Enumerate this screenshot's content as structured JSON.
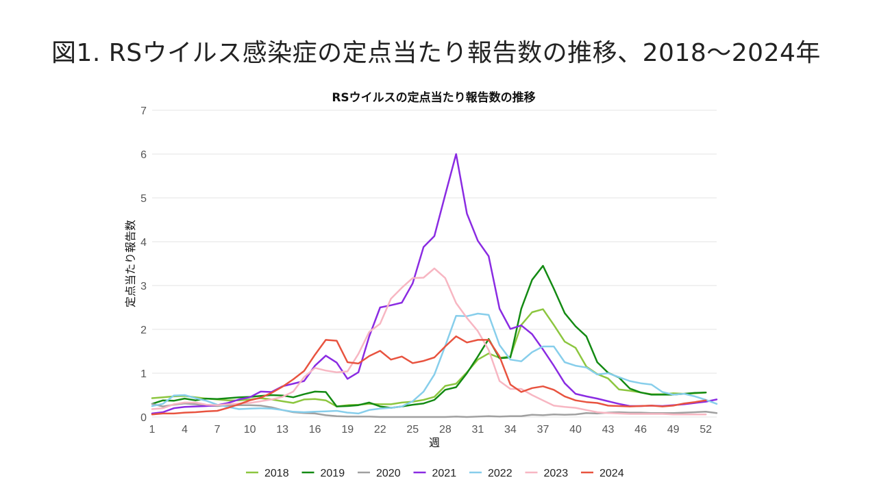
{
  "slide_title": "図1. RSウイルス感染症の定点当たり報告数の推移、2018～2024年",
  "chart_data": {
    "type": "line",
    "title": "RSウイルスの定点当たり報告数の推移",
    "xlabel": "週",
    "ylabel": "定点当たり報告数",
    "xlim": [
      1,
      53
    ],
    "ylim": [
      0,
      7
    ],
    "x_ticks": [
      1,
      4,
      7,
      10,
      13,
      16,
      19,
      22,
      25,
      28,
      31,
      34,
      37,
      40,
      43,
      46,
      49,
      52
    ],
    "y_ticks": [
      0,
      1,
      2,
      3,
      4,
      5,
      6,
      7
    ],
    "grid": "horizontal",
    "legend_position": "bottom",
    "x": [
      1,
      2,
      3,
      4,
      5,
      6,
      7,
      8,
      9,
      10,
      11,
      12,
      13,
      14,
      15,
      16,
      17,
      18,
      19,
      20,
      21,
      22,
      23,
      24,
      25,
      26,
      27,
      28,
      29,
      30,
      31,
      32,
      33,
      34,
      35,
      36,
      37,
      38,
      39,
      40,
      41,
      42,
      43,
      44,
      45,
      46,
      47,
      48,
      49,
      50,
      51,
      52,
      53
    ],
    "series": [
      {
        "name": "2018",
        "color": "#8cc63f",
        "values": [
          0.43,
          0.45,
          0.47,
          0.48,
          0.45,
          0.42,
          0.4,
          0.38,
          0.38,
          0.4,
          0.43,
          0.4,
          0.36,
          0.32,
          0.4,
          0.41,
          0.38,
          0.24,
          0.27,
          0.28,
          0.3,
          0.29,
          0.29,
          0.33,
          0.35,
          0.39,
          0.46,
          0.71,
          0.76,
          1.02,
          1.31,
          1.45,
          1.35,
          1.38,
          2.1,
          2.39,
          2.46,
          2.1,
          1.72,
          1.58,
          1.15,
          0.98,
          0.88,
          0.63,
          0.6,
          0.56,
          0.52,
          0.52,
          0.54,
          0.53,
          0.54,
          0.56,
          null
        ]
      },
      {
        "name": "2019",
        "color": "#138a13",
        "values": [
          0.3,
          0.38,
          0.37,
          0.42,
          0.38,
          0.42,
          0.41,
          0.43,
          0.45,
          0.46,
          0.48,
          0.5,
          0.49,
          0.45,
          0.52,
          0.58,
          0.57,
          0.24,
          0.25,
          0.27,
          0.33,
          0.24,
          0.21,
          0.24,
          0.28,
          0.31,
          0.39,
          0.62,
          0.68,
          1.0,
          1.38,
          1.78,
          1.34,
          1.36,
          2.47,
          3.13,
          3.45,
          2.93,
          2.37,
          2.07,
          1.84,
          1.25,
          1.01,
          0.9,
          0.65,
          0.56,
          0.51,
          0.51,
          0.51,
          0.53,
          0.55,
          0.56,
          null
        ]
      },
      {
        "name": "2020",
        "color": "#a0a0a0",
        "values": [
          0.3,
          0.24,
          0.28,
          0.31,
          0.29,
          0.26,
          0.25,
          0.26,
          0.27,
          0.27,
          0.26,
          0.22,
          0.16,
          0.11,
          0.09,
          0.08,
          0.04,
          0.02,
          0.01,
          0.01,
          0.01,
          0.0,
          0.0,
          0.0,
          0.0,
          0.0,
          0.0,
          0.0,
          0.01,
          0.0,
          0.01,
          0.02,
          0.01,
          0.02,
          0.02,
          0.05,
          0.04,
          0.06,
          0.05,
          0.06,
          0.09,
          0.08,
          0.1,
          0.11,
          0.1,
          0.1,
          0.09,
          0.09,
          0.09,
          0.1,
          0.11,
          0.12,
          0.09
        ]
      },
      {
        "name": "2021",
        "color": "#8a2be2",
        "values": [
          0.08,
          0.11,
          0.2,
          0.23,
          0.24,
          0.25,
          0.27,
          0.32,
          0.4,
          0.45,
          0.58,
          0.57,
          0.7,
          0.76,
          0.82,
          1.17,
          1.4,
          1.24,
          0.87,
          1.02,
          1.84,
          2.5,
          2.55,
          2.61,
          3.05,
          3.88,
          4.13,
          5.07,
          6.0,
          4.64,
          4.02,
          3.67,
          2.47,
          2.01,
          2.09,
          1.89,
          1.54,
          1.17,
          0.77,
          0.53,
          0.47,
          0.42,
          0.36,
          0.3,
          0.25,
          0.25,
          0.26,
          0.25,
          0.27,
          0.29,
          0.32,
          0.35,
          0.4
        ]
      },
      {
        "name": "2022",
        "color": "#87ceeb",
        "values": [
          0.25,
          0.3,
          0.49,
          0.5,
          0.43,
          0.37,
          0.28,
          0.23,
          0.18,
          0.19,
          0.2,
          0.19,
          0.16,
          0.12,
          0.11,
          0.12,
          0.13,
          0.14,
          0.1,
          0.08,
          0.16,
          0.19,
          0.21,
          0.24,
          0.36,
          0.58,
          0.97,
          1.62,
          2.31,
          2.3,
          2.36,
          2.33,
          1.64,
          1.31,
          1.27,
          1.48,
          1.61,
          1.61,
          1.25,
          1.17,
          1.13,
          0.97,
          1.0,
          0.91,
          0.82,
          0.77,
          0.74,
          0.57,
          0.51,
          0.53,
          0.47,
          0.39,
          0.3
        ]
      },
      {
        "name": "2023",
        "color": "#f7b6c2",
        "values": [
          0.18,
          0.2,
          0.29,
          0.33,
          0.33,
          0.28,
          0.27,
          0.29,
          0.31,
          0.32,
          0.36,
          0.4,
          0.46,
          0.58,
          0.91,
          1.12,
          1.06,
          1.02,
          1.04,
          1.44,
          1.94,
          2.13,
          2.7,
          2.95,
          3.17,
          3.18,
          3.39,
          3.17,
          2.6,
          2.26,
          1.96,
          1.53,
          0.82,
          0.64,
          0.64,
          0.5,
          0.38,
          0.26,
          0.23,
          0.21,
          0.16,
          0.11,
          0.09,
          0.08,
          0.07,
          0.07,
          0.07,
          0.07,
          0.06,
          0.06,
          0.06,
          0.06,
          null
        ]
      },
      {
        "name": "2024",
        "color": "#e8533f",
        "values": [
          0.06,
          0.08,
          0.08,
          0.1,
          0.11,
          0.13,
          0.14,
          0.21,
          0.29,
          0.38,
          0.44,
          0.55,
          0.69,
          0.86,
          1.05,
          1.42,
          1.76,
          1.74,
          1.25,
          1.22,
          1.39,
          1.51,
          1.31,
          1.38,
          1.23,
          1.28,
          1.36,
          1.61,
          1.84,
          1.7,
          1.76,
          1.76,
          1.38,
          0.74,
          0.57,
          0.66,
          0.7,
          0.62,
          0.47,
          0.38,
          0.34,
          0.32,
          0.26,
          0.25,
          0.24,
          0.25,
          0.26,
          0.24,
          0.26,
          0.31,
          0.34,
          0.38,
          null
        ]
      }
    ]
  }
}
